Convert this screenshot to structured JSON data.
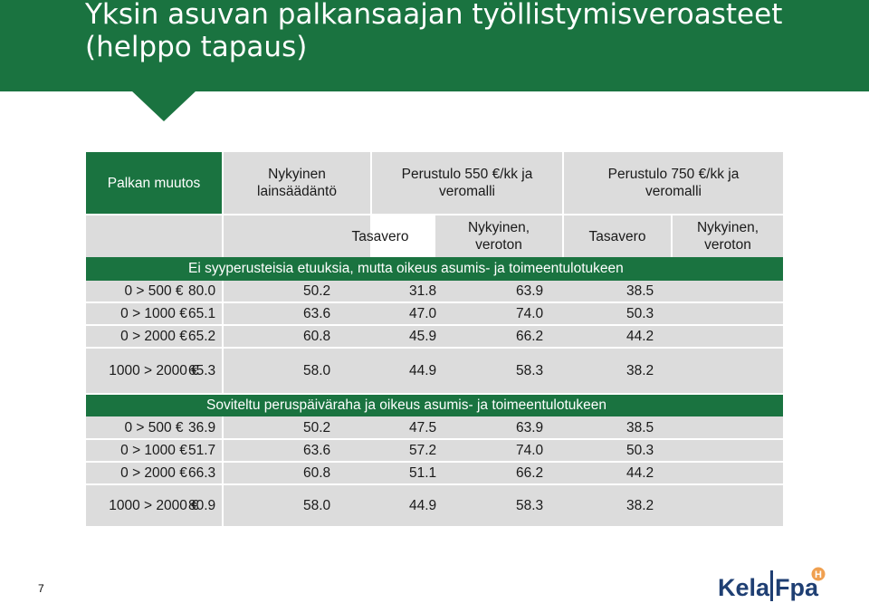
{
  "slide": {
    "title_line1": "Yksin asuvan palkansaajan työllistymisveroasteet",
    "title_line2": "(helppo tapaus)",
    "page_number": "7"
  },
  "table": {
    "header1": {
      "col0": "Palkan muutos",
      "col1": "Nykyinen lainsäädäntö",
      "col2": "Perustulo 550 €/kk ja veromalli",
      "col3": "Perustulo 750 €/kk ja veromalli"
    },
    "header2": {
      "c1": "Tasavero",
      "c2": "Nykyinen, veroton",
      "c3": "Tasavero",
      "c4": "Nykyinen, veroton"
    },
    "section1_title": "Ei syyperusteisia etuuksia, mutta oikeus asumis- ja toimeentulotukeen",
    "section2_title": "Soviteltu peruspäiväraha ja oikeus asumis- ja toimeentulotukeen",
    "section1_rows": [
      {
        "label": "0 > 500 €",
        "v": [
          "80.0",
          "50.2",
          "31.8",
          "63.9",
          "38.5"
        ]
      },
      {
        "label": "0 > 1000 €",
        "v": [
          "65.1",
          "63.6",
          "47.0",
          "74.0",
          "50.3"
        ]
      },
      {
        "label": "0 > 2000 €",
        "v": [
          "65.2",
          "60.8",
          "45.9",
          "66.2",
          "44.2"
        ]
      },
      {
        "label": "1000 > 2000 €",
        "v": [
          "65.3",
          "58.0",
          "44.9",
          "58.3",
          "38.2"
        ]
      }
    ],
    "section2_rows": [
      {
        "label": "0 > 500 €",
        "v": [
          "36.9",
          "50.2",
          "47.5",
          "63.9",
          "38.5"
        ]
      },
      {
        "label": "0 > 1000 €",
        "v": [
          "51.7",
          "63.6",
          "57.2",
          "74.0",
          "50.3"
        ]
      },
      {
        "label": "0 > 2000 €",
        "v": [
          "66.3",
          "60.8",
          "51.1",
          "66.2",
          "44.2"
        ]
      },
      {
        "label": "1000 > 2000 €",
        "v": [
          "80.9",
          "58.0",
          "44.9",
          "58.3",
          "38.2"
        ]
      }
    ]
  },
  "logo": {
    "text_left": "Kela",
    "text_right": "Fpa",
    "badge": "H"
  },
  "colors": {
    "brand_green": "#1a7340",
    "light_gray": "#dcdcdc",
    "logo_blue": "#1f3f73",
    "logo_orange": "#f0a050"
  }
}
